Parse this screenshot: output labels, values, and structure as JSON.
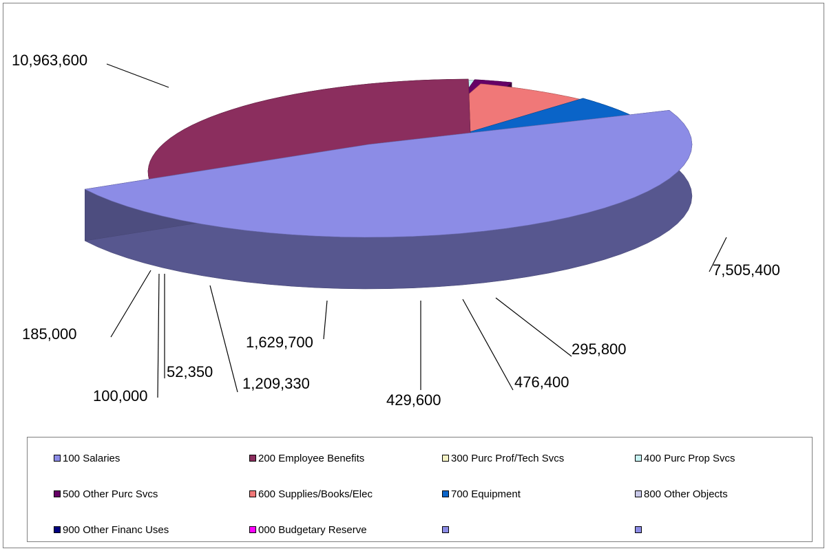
{
  "chart_data": {
    "type": "pie",
    "style": "3d-exploded",
    "title": "",
    "legend_position": "bottom",
    "slices": [
      {
        "label": "100 Salaries",
        "value": 10963600,
        "value_label": "10,963,600",
        "color": "#8c8ce6"
      },
      {
        "label": "200 Employee Benefits",
        "value": 7505400,
        "value_label": "7,505,400",
        "color": "#8b2e5e"
      },
      {
        "label": "300 Purc Prof/Tech Svcs",
        "value": 295800,
        "value_label": "295,800",
        "color": "#f4f2c4"
      },
      {
        "label": "400 Purc Prop Svcs",
        "value": 476400,
        "value_label": "476,400",
        "color": "#c6f2f2"
      },
      {
        "label": "500 Other Purc Svcs",
        "value": 429600,
        "value_label": "429,600",
        "color": "#660066"
      },
      {
        "label": "600 Supplies/Books/Elec",
        "value": 1629700,
        "value_label": "1,629,700",
        "color": "#f07878"
      },
      {
        "label": "700 Equipment",
        "value": 1209330,
        "value_label": "1,209,330",
        "color": "#0a64c8"
      },
      {
        "label": "800 Other Objects",
        "value": 52350,
        "value_label": "52,350",
        "color": "#c8c8e8"
      },
      {
        "label": "900 Other Financ Uses",
        "value": 100000,
        "value_label": "100,000",
        "color": "#000080"
      },
      {
        "label": "000 Budgetary Reserve",
        "value": 185000,
        "value_label": "185,000",
        "color": "#ff00ff"
      }
    ],
    "legend_extra": [
      {
        "label": "",
        "color": "#8c8ce6"
      },
      {
        "label": "",
        "color": "#8c8ce6"
      }
    ]
  }
}
